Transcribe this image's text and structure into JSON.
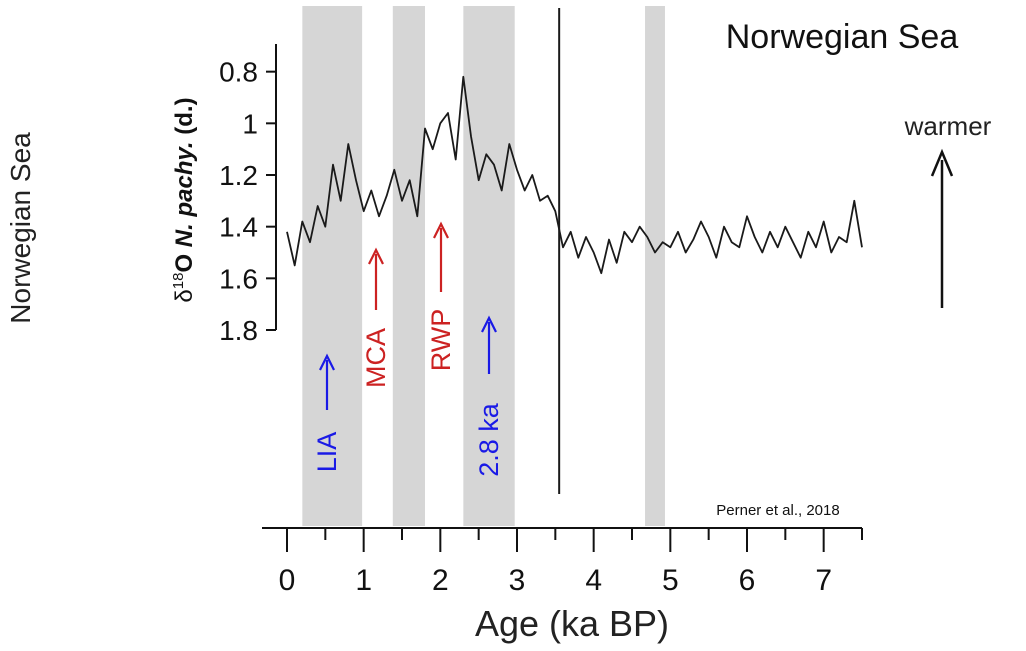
{
  "chart_data": {
    "type": "line",
    "title": "Norwegian Sea",
    "side_label": "Norwegian Sea",
    "xlabel": "Age (ka BP)",
    "ylabel_parts": {
      "delta": "δ",
      "superscript": "18",
      "rest": "O ",
      "taxon": "N. pachy.",
      "suffix": " (d.)"
    },
    "xlim": [
      0,
      7.5
    ],
    "ylim": [
      1.8,
      0.6
    ],
    "y_inverted": true,
    "xticks": [
      "0",
      "1",
      "2",
      "3",
      "4",
      "5",
      "6",
      "7"
    ],
    "yticks": [
      "0.8",
      "1",
      "1.2",
      "1.4",
      "1.6",
      "1.8"
    ],
    "citation": "Perner et al., 2018",
    "warmer_label": "warmer",
    "shaded_periods": [
      {
        "start": 0.2,
        "end": 0.98
      },
      {
        "start": 1.38,
        "end": 1.8
      },
      {
        "start": 2.3,
        "end": 2.97
      },
      {
        "start": 4.67,
        "end": 4.93
      }
    ],
    "event_line_x": 3.55,
    "annotations": [
      {
        "label": "LIA",
        "x": 0.5,
        "color": "#1a1ae6"
      },
      {
        "label": "MCA",
        "x": 1.15,
        "color": "#cc2222"
      },
      {
        "label": "RWP",
        "x": 2.05,
        "color": "#cc2222"
      },
      {
        "label": "2.8 ka",
        "x": 2.62,
        "color": "#1a1ae6"
      }
    ],
    "series": [
      {
        "color": "#1a1a1a",
        "x": [
          0.0,
          0.1,
          0.2,
          0.3,
          0.4,
          0.5,
          0.6,
          0.7,
          0.8,
          0.9,
          1.0,
          1.1,
          1.2,
          1.3,
          1.4,
          1.5,
          1.6,
          1.7,
          1.8,
          1.9,
          2.0,
          2.1,
          2.2,
          2.3,
          2.4,
          2.5,
          2.6,
          2.7,
          2.8,
          2.9,
          3.0,
          3.1,
          3.2,
          3.3,
          3.4,
          3.5,
          3.6,
          3.7,
          3.8,
          3.9,
          4.0,
          4.1,
          4.2,
          4.3,
          4.4,
          4.5,
          4.6,
          4.7,
          4.8,
          4.9,
          5.0,
          5.1,
          5.2,
          5.3,
          5.4,
          5.5,
          5.6,
          5.7,
          5.8,
          5.9,
          6.0,
          6.1,
          6.2,
          6.3,
          6.4,
          6.5,
          6.6,
          6.7,
          6.8,
          6.9,
          7.0,
          7.1,
          7.2,
          7.3,
          7.4,
          7.5
        ],
        "y": [
          1.42,
          1.55,
          1.38,
          1.46,
          1.32,
          1.4,
          1.16,
          1.3,
          1.08,
          1.22,
          1.34,
          1.26,
          1.36,
          1.28,
          1.18,
          1.3,
          1.22,
          1.36,
          1.02,
          1.1,
          1.0,
          0.96,
          1.14,
          0.82,
          1.05,
          1.22,
          1.12,
          1.16,
          1.26,
          1.08,
          1.18,
          1.26,
          1.2,
          1.3,
          1.28,
          1.34,
          1.48,
          1.42,
          1.52,
          1.44,
          1.5,
          1.58,
          1.45,
          1.54,
          1.42,
          1.46,
          1.4,
          1.44,
          1.5,
          1.46,
          1.48,
          1.42,
          1.5,
          1.45,
          1.38,
          1.44,
          1.52,
          1.4,
          1.46,
          1.48,
          1.36,
          1.44,
          1.5,
          1.42,
          1.48,
          1.4,
          1.46,
          1.52,
          1.42,
          1.48,
          1.38,
          1.5,
          1.44,
          1.46,
          1.3,
          1.48
        ]
      }
    ]
  }
}
